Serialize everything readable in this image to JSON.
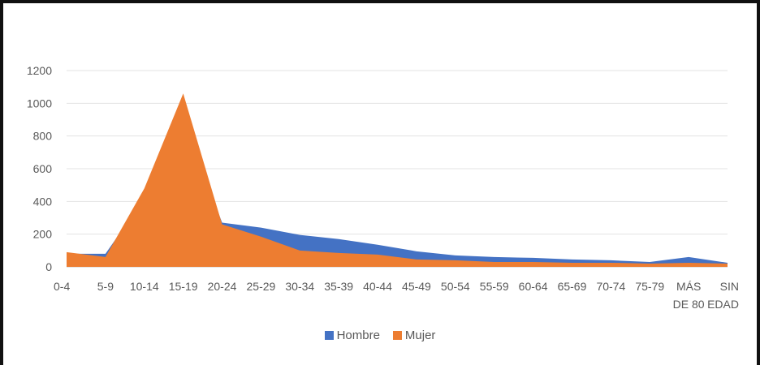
{
  "chart_data": {
    "type": "area",
    "categories": [
      "0-4",
      "5-9",
      "10-14",
      "15-19",
      "20-24",
      "25-29",
      "30-34",
      "35-39",
      "40-44",
      "45-49",
      "50-54",
      "55-59",
      "60-64",
      "65-69",
      "70-74",
      "75-79",
      "MÁS DE 80",
      "SIN EDAD"
    ],
    "tick_label_lines": [
      [
        "0-4"
      ],
      [
        "5-9"
      ],
      [
        "10-14"
      ],
      [
        "15-19"
      ],
      [
        "20-24"
      ],
      [
        "25-29"
      ],
      [
        "30-34"
      ],
      [
        "35-39"
      ],
      [
        "40-44"
      ],
      [
        "45-49"
      ],
      [
        "50-54"
      ],
      [
        "55-59"
      ],
      [
        "60-64"
      ],
      [
        "65-69"
      ],
      [
        "70-74"
      ],
      [
        "75-79"
      ],
      [
        "MÁS",
        "DE 80"
      ],
      [
        "SIN",
        "EDAD"
      ]
    ],
    "series": [
      {
        "name": "Hombre",
        "color": "#4472C4",
        "values": [
          80,
          80,
          420,
          900,
          270,
          240,
          195,
          170,
          135,
          95,
          70,
          60,
          55,
          45,
          40,
          30,
          60,
          25
        ]
      },
      {
        "name": "Mujer",
        "color": "#ED7D31",
        "values": [
          90,
          60,
          480,
          1060,
          260,
          185,
          100,
          85,
          75,
          45,
          40,
          30,
          30,
          25,
          25,
          20,
          25,
          20
        ]
      }
    ],
    "yticks": [
      0,
      200,
      400,
      600,
      800,
      1000,
      1200
    ],
    "ylim": [
      0,
      1200
    ],
    "grid": true,
    "legend": "bottom"
  }
}
